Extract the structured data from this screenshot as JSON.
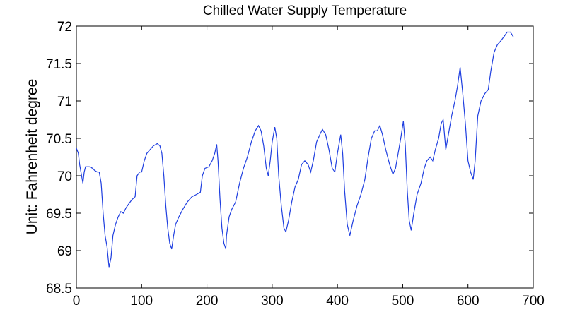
{
  "chart_data": {
    "type": "line",
    "title": "Chilled Water Supply Temperature",
    "y_label": "Unit: Fahrenheit degree",
    "x": [
      0,
      3,
      5,
      8,
      10,
      12,
      14,
      20,
      25,
      28,
      32,
      35,
      38,
      41,
      44,
      47,
      50,
      53,
      56,
      60,
      64,
      68,
      72,
      76,
      80,
      85,
      90,
      93,
      97,
      100,
      104,
      108,
      113,
      118,
      124,
      128,
      131,
      134,
      137,
      140,
      143,
      146,
      149,
      152,
      157,
      163,
      170,
      177,
      184,
      190,
      193,
      197,
      203,
      208,
      212,
      215,
      217,
      220,
      223,
      226,
      229,
      230,
      234,
      238,
      244,
      250,
      256,
      262,
      268,
      274,
      279,
      283,
      287,
      291,
      294,
      297,
      300,
      304,
      307,
      310,
      314,
      318,
      321,
      325,
      330,
      335,
      340,
      345,
      350,
      355,
      359,
      363,
      368,
      373,
      377,
      382,
      387,
      392,
      396,
      400,
      405,
      408,
      411,
      415,
      419,
      424,
      430,
      436,
      442,
      447,
      452,
      457,
      461,
      465,
      469,
      474,
      480,
      485,
      489,
      493,
      497,
      501,
      504,
      507,
      510,
      513,
      517,
      522,
      528,
      533,
      537,
      542,
      546,
      550,
      555,
      559,
      562,
      566,
      570,
      575,
      580,
      584,
      588,
      592,
      596,
      600,
      604,
      608,
      611,
      615,
      620,
      626,
      631,
      635,
      640,
      645,
      650,
      656,
      660,
      665,
      670
    ],
    "series": [
      {
        "color": "#1f3fe0",
        "values": [
          70.37,
          70.3,
          70.15,
          70.0,
          69.9,
          70.05,
          70.12,
          70.12,
          70.1,
          70.07,
          70.05,
          70.05,
          69.9,
          69.5,
          69.2,
          69.05,
          68.78,
          68.9,
          69.2,
          69.35,
          69.45,
          69.52,
          69.5,
          69.57,
          69.62,
          69.68,
          69.72,
          70.0,
          70.05,
          70.05,
          70.2,
          70.3,
          70.35,
          70.4,
          70.43,
          70.4,
          70.3,
          70.0,
          69.6,
          69.3,
          69.1,
          69.02,
          69.2,
          69.35,
          69.45,
          69.55,
          69.65,
          69.72,
          69.75,
          69.78,
          70.0,
          70.1,
          70.12,
          70.2,
          70.3,
          70.42,
          70.2,
          69.7,
          69.3,
          69.1,
          69.02,
          69.2,
          69.45,
          69.55,
          69.65,
          69.9,
          70.1,
          70.25,
          70.45,
          70.6,
          70.67,
          70.6,
          70.4,
          70.1,
          70.0,
          70.2,
          70.45,
          70.65,
          70.5,
          70.0,
          69.6,
          69.3,
          69.25,
          69.4,
          69.65,
          69.85,
          69.95,
          70.15,
          70.2,
          70.15,
          70.05,
          70.2,
          70.45,
          70.55,
          70.62,
          70.55,
          70.35,
          70.1,
          70.05,
          70.3,
          70.55,
          70.3,
          69.8,
          69.35,
          69.2,
          69.4,
          69.6,
          69.75,
          69.95,
          70.25,
          70.5,
          70.6,
          70.6,
          70.67,
          70.55,
          70.35,
          70.15,
          70.02,
          70.1,
          70.3,
          70.5,
          70.73,
          70.4,
          69.8,
          69.4,
          69.27,
          69.5,
          69.75,
          69.9,
          70.1,
          70.2,
          70.25,
          70.2,
          70.35,
          70.5,
          70.7,
          70.75,
          70.35,
          70.55,
          70.8,
          71.0,
          71.2,
          71.45,
          71.1,
          70.7,
          70.2,
          70.05,
          69.95,
          70.2,
          70.8,
          71.0,
          71.1,
          71.15,
          71.4,
          71.65,
          71.75,
          71.8,
          71.87,
          71.92,
          71.92,
          71.85
        ]
      }
    ],
    "xlim": [
      0,
      700
    ],
    "xticks": [
      0,
      100,
      200,
      300,
      400,
      500,
      600,
      700
    ],
    "ylim": [
      68.5,
      72
    ],
    "yticks": [
      68.5,
      69,
      69.5,
      70,
      70.5,
      71,
      71.5,
      72
    ]
  }
}
